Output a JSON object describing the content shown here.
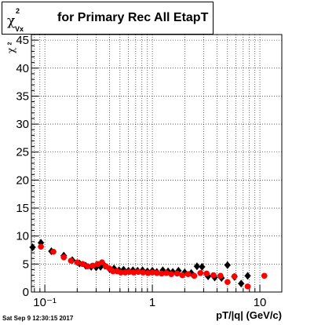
{
  "title": {
    "symbol": "χ",
    "sup": "2",
    "sub": "Vx",
    "text": "for Primary Rec All EtapT"
  },
  "footer": "Sat Sep  9 12:30:15 2017",
  "colors": {
    "series_black": "#000000",
    "series_red": "#ff0000",
    "grid": "#000000"
  },
  "chart_data": {
    "type": "scatter",
    "xscale": "log",
    "xlim": [
      0.075,
      16.0
    ],
    "ylim": [
      0,
      46
    ],
    "grid": true,
    "xlabel": "pT/|q| (GeV/c)",
    "ylabel": "χ2",
    "ylabel_symbol": "χ",
    "ylabel_sup": "2",
    "yticks": [
      0,
      5,
      10,
      15,
      20,
      25,
      30,
      35,
      40,
      45
    ],
    "ytick_labels": [
      "0",
      "5",
      "10",
      "15",
      "20",
      "25",
      "30",
      "35",
      "40",
      "45"
    ],
    "xticks": [
      0.1,
      1,
      10
    ],
    "xtick_labels": [
      "10⁻¹",
      "1",
      "10"
    ],
    "series": [
      {
        "marker": "diamond",
        "color": "#000000",
        "points": [
          [
            0.077,
            8.0
          ],
          [
            0.092,
            8.8
          ],
          [
            0.115,
            7.3
          ],
          [
            0.15,
            6.5
          ],
          [
            0.18,
            5.7
          ],
          [
            0.21,
            5.1
          ],
          [
            0.24,
            4.7
          ],
          [
            0.27,
            4.5
          ],
          [
            0.3,
            4.4
          ],
          [
            0.33,
            4.5
          ],
          [
            0.36,
            4.7
          ],
          [
            0.4,
            4.1
          ],
          [
            0.44,
            4.2
          ],
          [
            0.49,
            3.9
          ],
          [
            0.54,
            4.0
          ],
          [
            0.6,
            3.8
          ],
          [
            0.66,
            3.9
          ],
          [
            0.73,
            3.8
          ],
          [
            0.81,
            3.9
          ],
          [
            0.9,
            3.7
          ],
          [
            1.0,
            3.8
          ],
          [
            1.1,
            3.6
          ],
          [
            1.25,
            3.9
          ],
          [
            1.4,
            3.7
          ],
          [
            1.55,
            3.6
          ],
          [
            1.75,
            3.8
          ],
          [
            2.0,
            3.5
          ],
          [
            2.3,
            3.4
          ],
          [
            2.6,
            4.6
          ],
          [
            2.9,
            4.5
          ],
          [
            3.3,
            2.8
          ],
          [
            3.8,
            2.6
          ],
          [
            4.4,
            2.5
          ],
          [
            5.0,
            4.8
          ],
          [
            5.8,
            2.7
          ],
          [
            6.7,
            1.5
          ],
          [
            7.7,
            2.9
          ]
        ]
      },
      {
        "marker": "circle",
        "color": "#ff0000",
        "points": [
          [
            0.092,
            8.1
          ],
          [
            0.12,
            7.2
          ],
          [
            0.15,
            6.2
          ],
          [
            0.175,
            5.6
          ],
          [
            0.2,
            5.3
          ],
          [
            0.225,
            5.0
          ],
          [
            0.25,
            4.6
          ],
          [
            0.28,
            4.7
          ],
          [
            0.31,
            5.0
          ],
          [
            0.34,
            5.3
          ],
          [
            0.37,
            4.6
          ],
          [
            0.4,
            4.2
          ],
          [
            0.43,
            3.7
          ],
          [
            0.47,
            3.7
          ],
          [
            0.51,
            3.5
          ],
          [
            0.56,
            3.5
          ],
          [
            0.61,
            3.6
          ],
          [
            0.67,
            3.5
          ],
          [
            0.74,
            3.6
          ],
          [
            0.82,
            3.5
          ],
          [
            0.91,
            3.4
          ],
          [
            1.0,
            3.5
          ],
          [
            1.1,
            3.4
          ],
          [
            1.22,
            3.3
          ],
          [
            1.35,
            3.4
          ],
          [
            1.5,
            3.2
          ],
          [
            1.7,
            3.3
          ],
          [
            1.9,
            3.0
          ],
          [
            2.15,
            3.2
          ],
          [
            2.45,
            2.9
          ],
          [
            2.8,
            3.4
          ],
          [
            3.2,
            3.3
          ],
          [
            3.7,
            3.0
          ],
          [
            4.3,
            2.9
          ],
          [
            5.0,
            1.8
          ],
          [
            5.8,
            2.8
          ],
          [
            7.7,
            1.0
          ],
          [
            11.0,
            2.9
          ]
        ]
      }
    ]
  }
}
